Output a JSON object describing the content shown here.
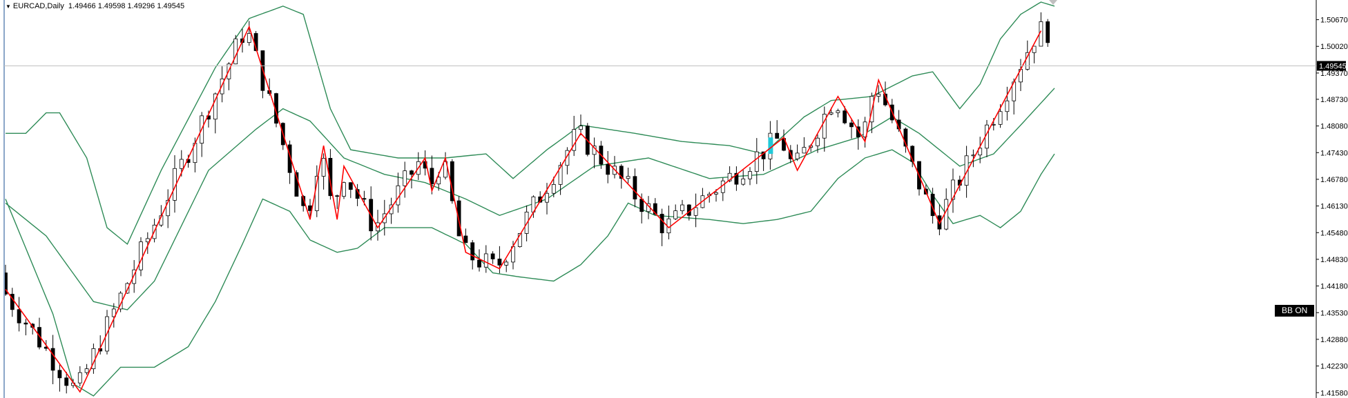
{
  "header": {
    "symbol": "EURCAD,Daily",
    "ohlc": "1.49466 1.49598 1.49296 1.49545"
  },
  "badge": {
    "label": "BB ON"
  },
  "colors": {
    "zigzag": "#ff0000",
    "bands": "#2e8b57",
    "candle": "#000000",
    "highlight": "#21c9d8",
    "price_line": "#c0c0c0"
  },
  "chart_data": {
    "type": "candlestick",
    "title": "EURCAD,Daily",
    "ylim": [
      1.4145,
      1.5115
    ],
    "y_ticks": [
      "1.50670",
      "1.50020",
      "1.49370",
      "1.48730",
      "1.48080",
      "1.47430",
      "1.46780",
      "1.46130",
      "1.45480",
      "1.44830",
      "1.44180",
      "1.43530",
      "1.42880",
      "1.42230",
      "1.41580"
    ],
    "current_price": "1.49545",
    "legend": "none",
    "grid": false,
    "candle_count": 155,
    "zigzag": [
      {
        "i": 0,
        "price": 1.441
      },
      {
        "i": 11,
        "price": 1.416
      },
      {
        "i": 36,
        "price": 1.505
      },
      {
        "i": 45,
        "price": 1.458
      },
      {
        "i": 47,
        "price": 1.476
      },
      {
        "i": 49,
        "price": 1.458
      },
      {
        "i": 50,
        "price": 1.471
      },
      {
        "i": 55,
        "price": 1.456
      },
      {
        "i": 62,
        "price": 1.473
      },
      {
        "i": 63,
        "price": 1.465
      },
      {
        "i": 65,
        "price": 1.473
      },
      {
        "i": 68,
        "price": 1.45
      },
      {
        "i": 73,
        "price": 1.446
      },
      {
        "i": 85,
        "price": 1.479
      },
      {
        "i": 98,
        "price": 1.456
      },
      {
        "i": 115,
        "price": 1.478
      },
      {
        "i": 117,
        "price": 1.47
      },
      {
        "i": 123,
        "price": 1.488
      },
      {
        "i": 127,
        "price": 1.477
      },
      {
        "i": 129,
        "price": 1.492
      },
      {
        "i": 138,
        "price": 1.457
      },
      {
        "i": 153,
        "price": 1.504
      }
    ],
    "bb_middle": [
      {
        "i": 0,
        "price": 1.462
      },
      {
        "i": 6,
        "price": 1.454
      },
      {
        "i": 13,
        "price": 1.438
      },
      {
        "i": 18,
        "price": 1.436
      },
      {
        "i": 22,
        "price": 1.443
      },
      {
        "i": 30,
        "price": 1.47
      },
      {
        "i": 37,
        "price": 1.48
      },
      {
        "i": 41,
        "price": 1.485
      },
      {
        "i": 45,
        "price": 1.482
      },
      {
        "i": 50,
        "price": 1.473
      },
      {
        "i": 56,
        "price": 1.469
      },
      {
        "i": 62,
        "price": 1.467
      },
      {
        "i": 68,
        "price": 1.463
      },
      {
        "i": 73,
        "price": 1.459
      },
      {
        "i": 80,
        "price": 1.463
      },
      {
        "i": 87,
        "price": 1.471
      },
      {
        "i": 95,
        "price": 1.473
      },
      {
        "i": 104,
        "price": 1.468
      },
      {
        "i": 112,
        "price": 1.469
      },
      {
        "i": 120,
        "price": 1.475
      },
      {
        "i": 126,
        "price": 1.478
      },
      {
        "i": 131,
        "price": 1.483
      },
      {
        "i": 135,
        "price": 1.479
      },
      {
        "i": 141,
        "price": 1.471
      },
      {
        "i": 146,
        "price": 1.474
      },
      {
        "i": 150,
        "price": 1.481
      },
      {
        "i": 155,
        "price": 1.49
      }
    ],
    "bb_upper": [
      {
        "i": 0,
        "price": 1.479
      },
      {
        "i": 3,
        "price": 1.479
      },
      {
        "i": 6,
        "price": 1.484
      },
      {
        "i": 8,
        "price": 1.484
      },
      {
        "i": 12,
        "price": 1.473
      },
      {
        "i": 15,
        "price": 1.456
      },
      {
        "i": 18,
        "price": 1.452
      },
      {
        "i": 23,
        "price": 1.47
      },
      {
        "i": 31,
        "price": 1.495
      },
      {
        "i": 36,
        "price": 1.507
      },
      {
        "i": 41,
        "price": 1.51
      },
      {
        "i": 44,
        "price": 1.508
      },
      {
        "i": 48,
        "price": 1.485
      },
      {
        "i": 51,
        "price": 1.475
      },
      {
        "i": 58,
        "price": 1.473
      },
      {
        "i": 65,
        "price": 1.473
      },
      {
        "i": 71,
        "price": 1.474
      },
      {
        "i": 75,
        "price": 1.468
      },
      {
        "i": 80,
        "price": 1.475
      },
      {
        "i": 85,
        "price": 1.481
      },
      {
        "i": 93,
        "price": 1.479
      },
      {
        "i": 100,
        "price": 1.477
      },
      {
        "i": 107,
        "price": 1.476
      },
      {
        "i": 112,
        "price": 1.474
      },
      {
        "i": 118,
        "price": 1.483
      },
      {
        "i": 122,
        "price": 1.487
      },
      {
        "i": 128,
        "price": 1.488
      },
      {
        "i": 134,
        "price": 1.493
      },
      {
        "i": 137,
        "price": 1.494
      },
      {
        "i": 141,
        "price": 1.485
      },
      {
        "i": 144,
        "price": 1.491
      },
      {
        "i": 147,
        "price": 1.502
      },
      {
        "i": 150,
        "price": 1.508
      },
      {
        "i": 153,
        "price": 1.511
      },
      {
        "i": 155,
        "price": 1.51
      }
    ],
    "bb_lower": [
      {
        "i": 0,
        "price": 1.463
      },
      {
        "i": 4,
        "price": 1.447
      },
      {
        "i": 7,
        "price": 1.435
      },
      {
        "i": 10,
        "price": 1.418
      },
      {
        "i": 13,
        "price": 1.415
      },
      {
        "i": 17,
        "price": 1.422
      },
      {
        "i": 22,
        "price": 1.422
      },
      {
        "i": 27,
        "price": 1.427
      },
      {
        "i": 31,
        "price": 1.438
      },
      {
        "i": 35,
        "price": 1.452
      },
      {
        "i": 38,
        "price": 1.463
      },
      {
        "i": 42,
        "price": 1.46
      },
      {
        "i": 45,
        "price": 1.453
      },
      {
        "i": 49,
        "price": 1.45
      },
      {
        "i": 52,
        "price": 1.451
      },
      {
        "i": 56,
        "price": 1.456
      },
      {
        "i": 63,
        "price": 1.456
      },
      {
        "i": 68,
        "price": 1.452
      },
      {
        "i": 72,
        "price": 1.445
      },
      {
        "i": 76,
        "price": 1.444
      },
      {
        "i": 81,
        "price": 1.443
      },
      {
        "i": 85,
        "price": 1.447
      },
      {
        "i": 89,
        "price": 1.454
      },
      {
        "i": 92,
        "price": 1.462
      },
      {
        "i": 96,
        "price": 1.459
      },
      {
        "i": 104,
        "price": 1.458
      },
      {
        "i": 109,
        "price": 1.457
      },
      {
        "i": 114,
        "price": 1.458
      },
      {
        "i": 119,
        "price": 1.46
      },
      {
        "i": 123,
        "price": 1.468
      },
      {
        "i": 127,
        "price": 1.473
      },
      {
        "i": 131,
        "price": 1.475
      },
      {
        "i": 134,
        "price": 1.472
      },
      {
        "i": 137,
        "price": 1.464
      },
      {
        "i": 140,
        "price": 1.457
      },
      {
        "i": 144,
        "price": 1.459
      },
      {
        "i": 147,
        "price": 1.456
      },
      {
        "i": 150,
        "price": 1.46
      },
      {
        "i": 153,
        "price": 1.469
      },
      {
        "i": 155,
        "price": 1.474
      }
    ]
  }
}
